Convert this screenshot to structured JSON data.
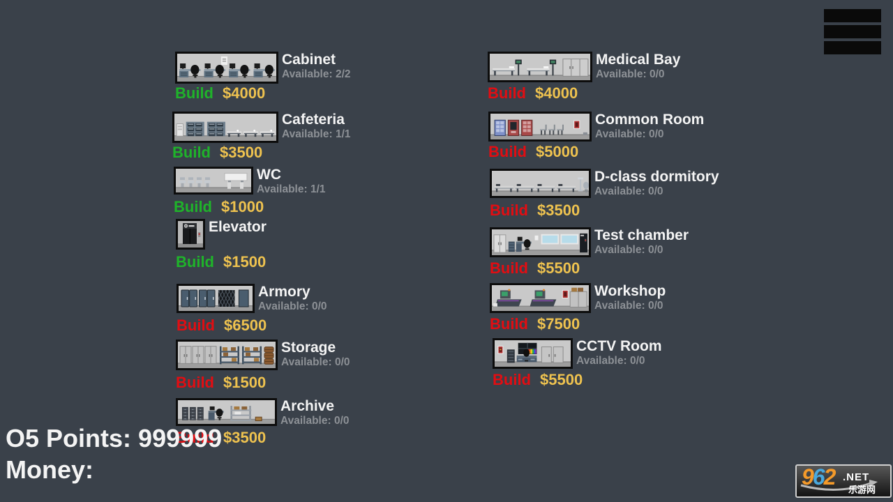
{
  "menu": {
    "icon": "hamburger-menu-icon"
  },
  "hud": {
    "o5_points_label": "O5 Points:",
    "o5_points_value": "999999",
    "money_label": "Money:",
    "money_value": ""
  },
  "build_button_label": "Build",
  "rooms": [
    {
      "name": "Cabinet",
      "available_label": "Available: 2/2",
      "price": "$4000",
      "build_state": "green",
      "thumbnail": "cabinet-room-art"
    },
    {
      "name": "Cafeteria",
      "available_label": "Available: 1/1",
      "price": "$3500",
      "build_state": "green",
      "thumbnail": "cafeteria-room-art"
    },
    {
      "name": "WC",
      "available_label": "Available: 1/1",
      "price": "$1000",
      "build_state": "green",
      "thumbnail": "wc-room-art"
    },
    {
      "name": "Elevator",
      "available_label": "",
      "price": "$1500",
      "build_state": "green",
      "thumbnail": "elevator-room-art"
    },
    {
      "name": "Armory",
      "available_label": "Available: 0/0",
      "price": "$6500",
      "build_state": "red",
      "thumbnail": "armory-room-art"
    },
    {
      "name": "Storage",
      "available_label": "Available: 0/0",
      "price": "$1500",
      "build_state": "red",
      "thumbnail": "storage-room-art"
    },
    {
      "name": "Archive",
      "available_label": "Available: 0/0",
      "price": "$3500",
      "build_state": "red",
      "thumbnail": "archive-room-art"
    },
    {
      "name": "Medical Bay",
      "available_label": "Available: 0/0",
      "price": "$4000",
      "build_state": "red",
      "thumbnail": "medical-bay-room-art"
    },
    {
      "name": "Common Room",
      "available_label": "Available: 0/0",
      "price": "$5000",
      "build_state": "red",
      "thumbnail": "common-room-art"
    },
    {
      "name": "D-class dormitory",
      "available_label": "Available: 0/0",
      "price": "$3500",
      "build_state": "red",
      "thumbnail": "d-class-dormitory-room-art"
    },
    {
      "name": "Test chamber",
      "available_label": "Available: 0/0",
      "price": "$5500",
      "build_state": "red",
      "thumbnail": "test-chamber-room-art"
    },
    {
      "name": "Workshop",
      "available_label": "Available: 0/0",
      "price": "$7500",
      "build_state": "red",
      "thumbnail": "workshop-room-art"
    },
    {
      "name": "CCTV Room",
      "available_label": "Available: 0/0",
      "price": "$5500",
      "build_state": "red",
      "thumbnail": "cctv-room-art"
    }
  ],
  "colors": {
    "background": "#3a414a",
    "title": "#f4f4f4",
    "available": "#8d9196",
    "build_affordable": "#1fb32a",
    "build_unaffordable": "#e20d12",
    "price": "#eec24f"
  },
  "watermark": {
    "digit1": "9",
    "digit2": "6",
    "digit3": "2",
    "suffix": ".NET",
    "cn": "乐游网"
  }
}
